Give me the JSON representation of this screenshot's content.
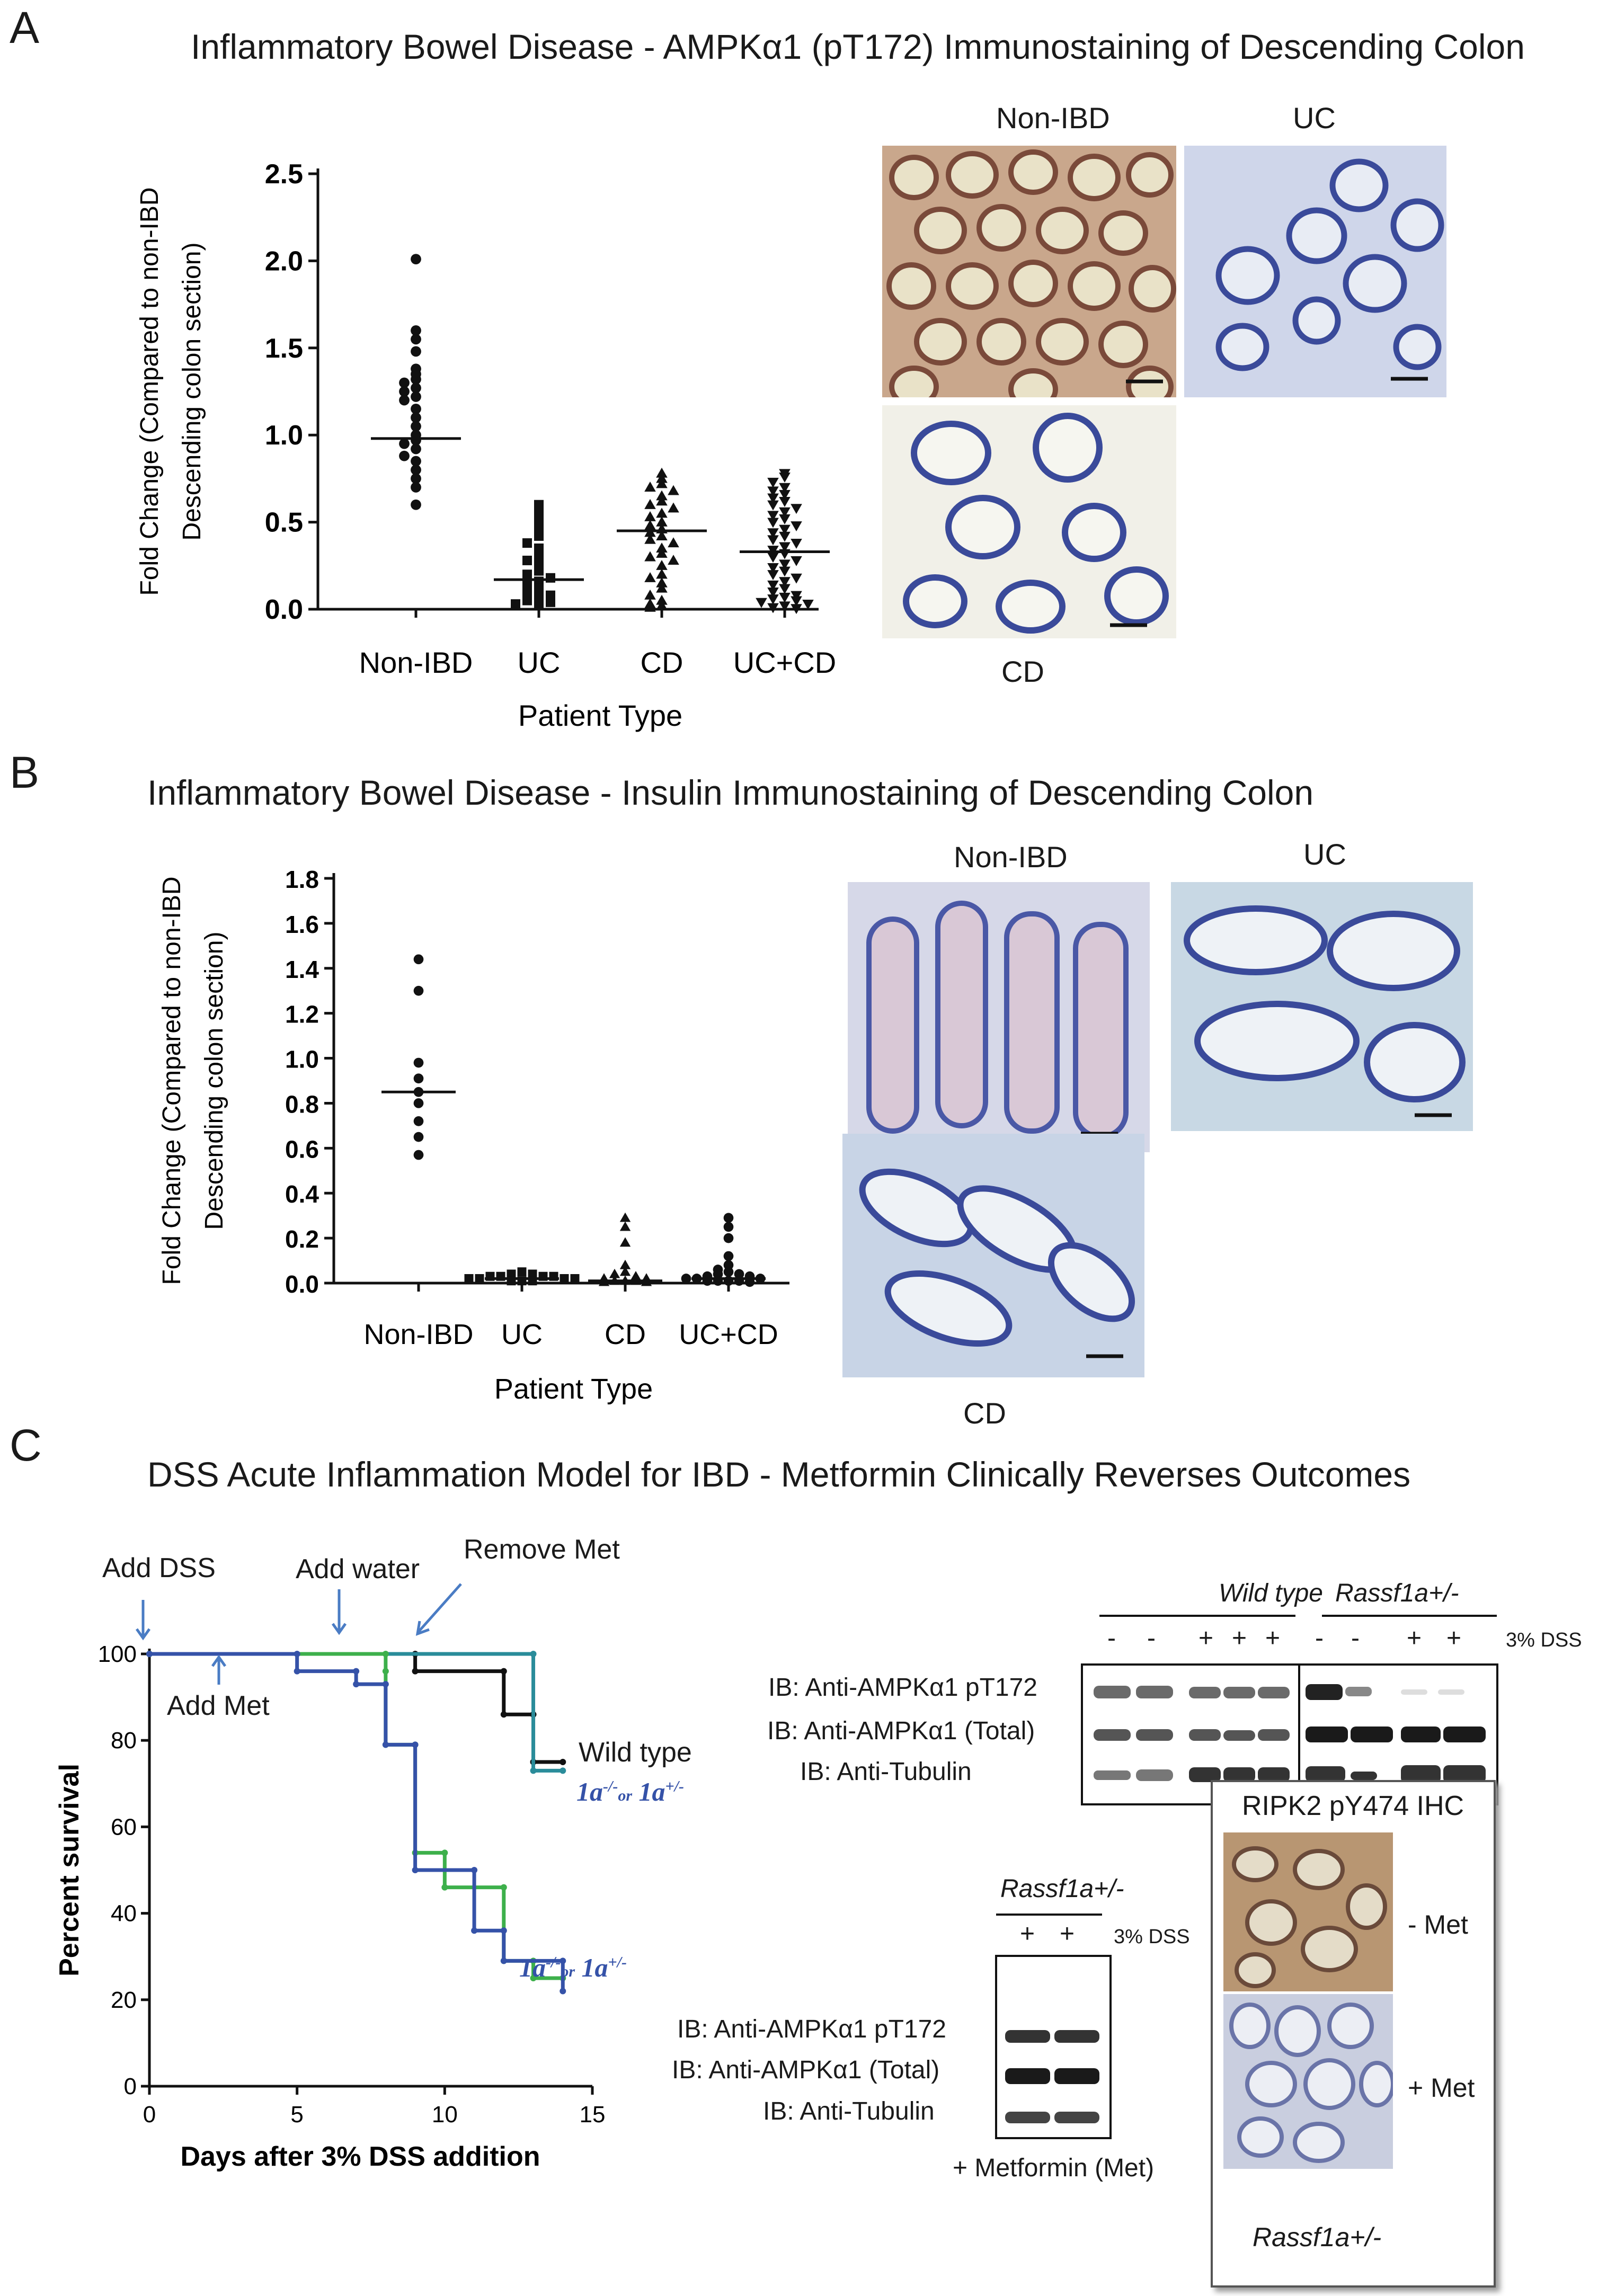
{
  "panels": {
    "a": {
      "label": "A",
      "title": "Inflammatory Bowel Disease - AMPKα1 (pT172) Immunostaining of Descending Colon",
      "images": {
        "non_ibd": "Non-IBD",
        "uc": "UC",
        "cd": "CD"
      }
    },
    "b": {
      "label": "B",
      "title": "Inflammatory Bowel Disease - Insulin Immunostaining of Descending Colon",
      "images": {
        "non_ibd": "Non-IBD",
        "uc": "UC",
        "cd": "CD"
      }
    },
    "c": {
      "label": "C",
      "title": "DSS Acute Inflammation Model  for IBD - Metformin Clinically Reverses Outcomes",
      "annotations": {
        "add_dss": "Add DSS",
        "add_water": "Add water",
        "remove_met": "Remove Met",
        "add_met": "Add Met",
        "wild_type": "Wild type",
        "ko_top_prefix": "1a",
        "ko_top_sup1": "-/-",
        "ko_top_or": "or",
        "ko_top_mid": "1a",
        "ko_top_sup2": "+/-",
        "ko_bottom_prefix": "1a",
        "ko_bottom_sup1": "-/-",
        "ko_bottom_or": "or",
        "ko_bottom_mid": "1a",
        "ko_bottom_sup2": "+/-"
      },
      "western_top": {
        "group1": "Wild type",
        "group2": "Rassf1a+/-",
        "treatment_label": "3% DSS",
        "lane_signs": [
          "-",
          "-",
          "+",
          "+",
          "+",
          "-",
          "-",
          "+",
          "+"
        ],
        "rows": [
          "IB: Anti-AMPKα1 pT172",
          "IB: Anti-AMPKα1 (Total)",
          "IB: Anti-Tubulin"
        ]
      },
      "western_bottom": {
        "group": "Rassf1a+/-",
        "treatment_label": "3% DSS",
        "lane_signs": [
          "+",
          "+"
        ],
        "rows": [
          "IB: Anti-AMPKα1 pT172",
          "IB: Anti-AMPKα1 (Total)",
          "IB: Anti-Tubulin"
        ],
        "footer": "+ Metformin (Met)"
      },
      "ihc": {
        "title": "RIPK2 pY474 IHC",
        "minus_met": "- Met",
        "plus_met": "+ Met",
        "genotype": "Rassf1a+/-"
      }
    }
  },
  "colors": {
    "wild_type_black": "#111111",
    "wt_met_teal": "#2a8c9a",
    "ko_green": "#3db04b",
    "ko_blue": "#3552a8",
    "arrow_blue": "#4a7cc4"
  },
  "chart_data": [
    {
      "id": "A",
      "type": "scatter",
      "ylabel": "Fold Change (Compared to non-IBD Descending colon section)",
      "ylabel_lines": [
        "Fold Change (Compared to non-IBD",
        "Descending colon section)"
      ],
      "xlabel": "Patient Type",
      "ylim": [
        0,
        2.5
      ],
      "yticks": [
        0.0,
        0.5,
        1.0,
        1.5,
        2.0,
        2.5
      ],
      "ytick_labels": [
        "0.0",
        "0.5",
        "1.0",
        "1.5",
        "2.0",
        "2.5"
      ],
      "categories": [
        "Non-IBD",
        "UC",
        "CD",
        "UC+CD"
      ],
      "series": [
        {
          "category": "Non-IBD",
          "marker": "circle",
          "median": 0.98,
          "values": [
            2.01,
            1.6,
            1.55,
            1.48,
            1.38,
            1.35,
            1.32,
            1.3,
            1.27,
            1.25,
            1.22,
            1.2,
            1.15,
            1.1,
            1.05,
            1.0,
            0.97,
            0.95,
            0.92,
            0.88,
            0.85,
            0.8,
            0.75,
            0.7,
            0.6
          ]
        },
        {
          "category": "UC",
          "marker": "square",
          "median": 0.17,
          "values": [
            0.6,
            0.55,
            0.5,
            0.45,
            0.42,
            0.38,
            0.35,
            0.3,
            0.28,
            0.25,
            0.22,
            0.2,
            0.18,
            0.16,
            0.15,
            0.12,
            0.1,
            0.08,
            0.07,
            0.05,
            0.04,
            0.03,
            0.02
          ]
        },
        {
          "category": "CD",
          "marker": "triangle-up",
          "median": 0.45,
          "values": [
            0.78,
            0.75,
            0.72,
            0.7,
            0.68,
            0.65,
            0.62,
            0.6,
            0.58,
            0.55,
            0.53,
            0.5,
            0.48,
            0.46,
            0.44,
            0.42,
            0.4,
            0.38,
            0.35,
            0.32,
            0.3,
            0.28,
            0.25,
            0.2,
            0.18,
            0.15,
            0.12,
            0.08,
            0.05,
            0.03,
            0.02,
            0.01
          ]
        },
        {
          "category": "UC+CD",
          "marker": "triangle-down",
          "median": 0.33,
          "values": [
            0.78,
            0.76,
            0.73,
            0.7,
            0.68,
            0.66,
            0.64,
            0.62,
            0.6,
            0.58,
            0.56,
            0.54,
            0.52,
            0.5,
            0.48,
            0.46,
            0.44,
            0.42,
            0.4,
            0.38,
            0.36,
            0.34,
            0.32,
            0.3,
            0.28,
            0.26,
            0.24,
            0.22,
            0.2,
            0.18,
            0.16,
            0.14,
            0.12,
            0.1,
            0.08,
            0.07,
            0.06,
            0.05,
            0.04,
            0.03,
            0.02,
            0.01,
            0.005
          ]
        }
      ]
    },
    {
      "id": "B",
      "type": "scatter",
      "ylabel": "Fold Change (Compared to non-IBD Descending colon section)",
      "ylabel_lines": [
        "Fold Change (Compared to non-IBD",
        "Descending colon section)"
      ],
      "xlabel": "Patient Type",
      "ylim": [
        0,
        1.8
      ],
      "yticks": [
        0.0,
        0.2,
        0.4,
        0.6,
        0.8,
        1.0,
        1.2,
        1.4,
        1.6,
        1.8
      ],
      "ytick_labels": [
        "0.0",
        "0.2",
        "0.4",
        "0.6",
        "0.8",
        "1.0",
        "1.2",
        "1.4",
        "1.6",
        "1.8"
      ],
      "categories": [
        "Non-IBD",
        "UC",
        "CD",
        "UC+CD"
      ],
      "series": [
        {
          "category": "Non-IBD",
          "marker": "circle",
          "median": 0.85,
          "values": [
            1.44,
            1.3,
            0.98,
            0.91,
            0.85,
            0.8,
            0.72,
            0.65,
            0.57
          ]
        },
        {
          "category": "UC",
          "marker": "square",
          "median": 0.02,
          "values": [
            0.05,
            0.04,
            0.04,
            0.03,
            0.03,
            0.03,
            0.03,
            0.02,
            0.02,
            0.02,
            0.02,
            0.01,
            0.01,
            0.01
          ]
        },
        {
          "category": "CD",
          "marker": "triangle-up",
          "median": 0.01,
          "values": [
            0.29,
            0.25,
            0.18,
            0.08,
            0.05,
            0.04,
            0.03,
            0.02,
            0.02,
            0.01,
            0.01,
            0.01,
            0.005,
            0.005
          ]
        },
        {
          "category": "UC+CD",
          "marker": "circle",
          "median": 0.02,
          "values": [
            0.29,
            0.25,
            0.2,
            0.12,
            0.08,
            0.06,
            0.05,
            0.04,
            0.04,
            0.03,
            0.03,
            0.02,
            0.02,
            0.02,
            0.01,
            0.01,
            0.01,
            0.01,
            0.005
          ]
        }
      ]
    },
    {
      "id": "C",
      "type": "line",
      "step": true,
      "xlabel": "Days after 3% DSS addition",
      "ylabel": "Percent survival",
      "xlim": [
        0,
        15
      ],
      "ylim": [
        0,
        100
      ],
      "xticks": [
        0,
        5,
        10,
        15
      ],
      "yticks": [
        0,
        20,
        40,
        60,
        80,
        100
      ],
      "series": [
        {
          "color": "#111111",
          "points": [
            [
              0,
              100
            ],
            [
              9,
              100
            ],
            [
              9,
              96
            ],
            [
              12,
              96
            ],
            [
              12,
              86
            ],
            [
              13,
              86
            ],
            [
              13,
              75
            ],
            [
              14,
              75
            ]
          ]
        },
        {
          "color": "#2a8c9a",
          "points": [
            [
              0,
              100
            ],
            [
              13,
              100
            ],
            [
              13,
              73
            ],
            [
              14,
              73
            ]
          ]
        },
        {
          "color": "#3db04b",
          "points": [
            [
              0,
              100
            ],
            [
              8,
              100
            ],
            [
              8,
              96
            ],
            [
              8,
              79
            ],
            [
              9,
              79
            ],
            [
              9,
              54
            ],
            [
              10,
              54
            ],
            [
              10,
              46
            ],
            [
              12,
              46
            ],
            [
              12,
              29
            ],
            [
              13,
              29
            ],
            [
              13,
              25
            ],
            [
              14,
              25
            ]
          ]
        },
        {
          "color": "#3552a8",
          "points": [
            [
              0,
              100
            ],
            [
              5,
              100
            ],
            [
              5,
              96
            ],
            [
              7,
              96
            ],
            [
              7,
              93
            ],
            [
              8,
              93
            ],
            [
              8,
              79
            ],
            [
              9,
              79
            ],
            [
              9,
              50
            ],
            [
              11,
              50
            ],
            [
              11,
              36
            ],
            [
              12,
              36
            ],
            [
              12,
              29
            ],
            [
              14,
              29
            ],
            [
              14,
              22
            ]
          ]
        }
      ]
    }
  ]
}
